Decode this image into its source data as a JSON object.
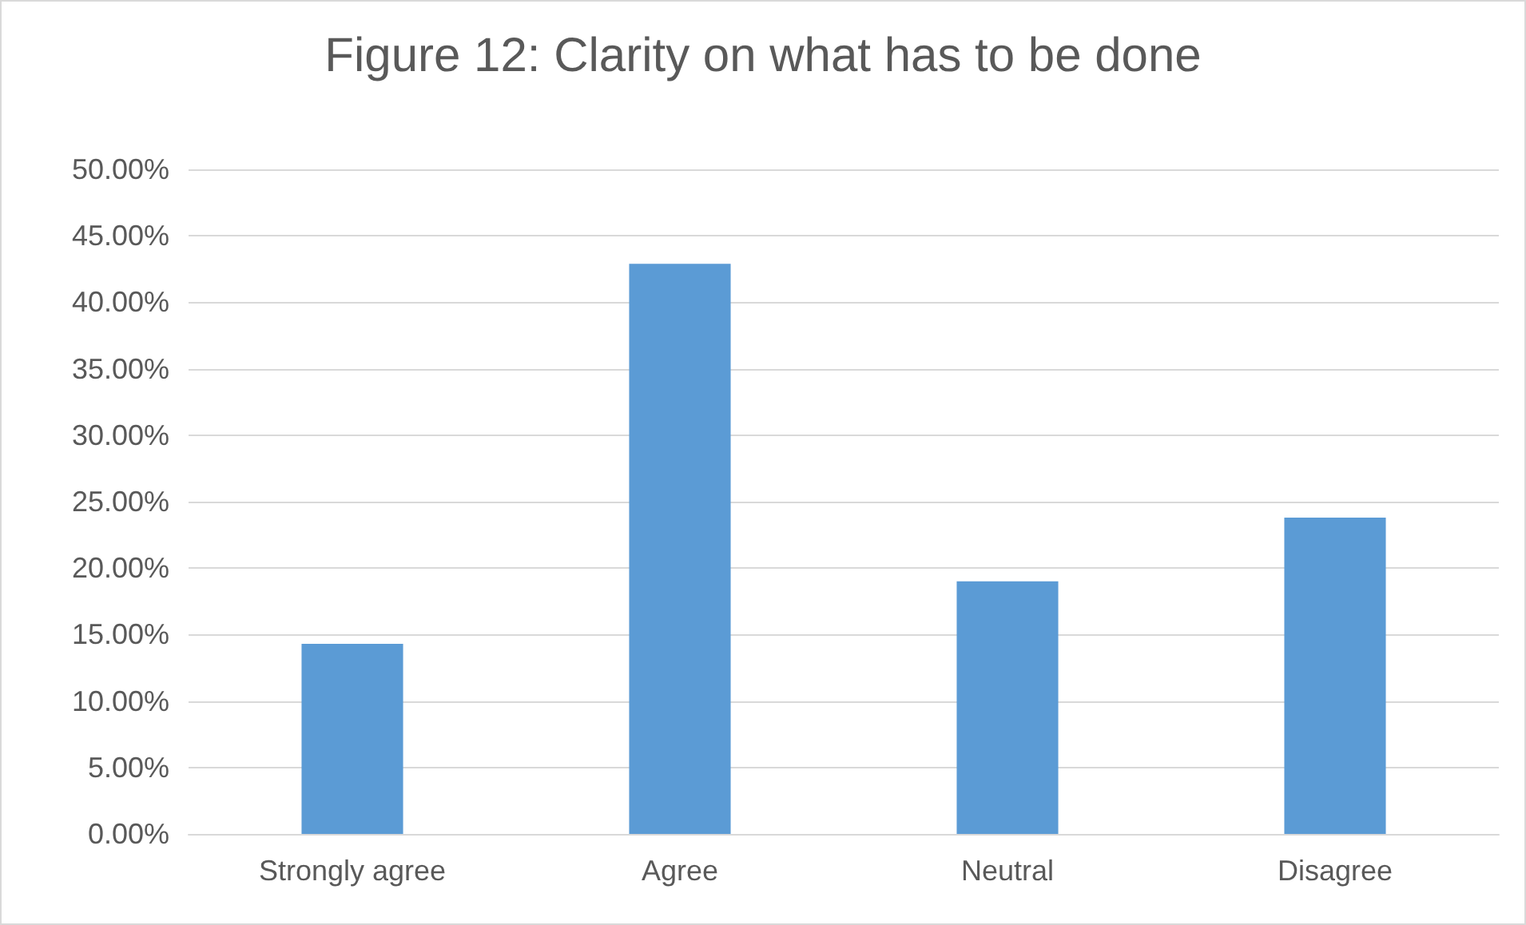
{
  "chart_data": {
    "type": "bar",
    "title": "Figure 12: Clarity on what has to be done",
    "categories": [
      "Strongly agree",
      "Agree",
      "Neutral",
      "Disagree"
    ],
    "values": [
      14.3,
      42.9,
      19.0,
      23.8
    ],
    "color": "#5b9bd5",
    "ylim": [
      0,
      50
    ],
    "yticks": [
      {
        "value": 0,
        "label": "0.00%"
      },
      {
        "value": 5,
        "label": "5.00%"
      },
      {
        "value": 10,
        "label": "10.00%"
      },
      {
        "value": 15,
        "label": "15.00%"
      },
      {
        "value": 20,
        "label": "20.00%"
      },
      {
        "value": 25,
        "label": "25.00%"
      },
      {
        "value": 30,
        "label": "30.00%"
      },
      {
        "value": 35,
        "label": "35.00%"
      },
      {
        "value": 40,
        "label": "40.00%"
      },
      {
        "value": 45,
        "label": "45.00%"
      },
      {
        "value": 50,
        "label": "50.00%"
      }
    ],
    "grid": "y"
  }
}
